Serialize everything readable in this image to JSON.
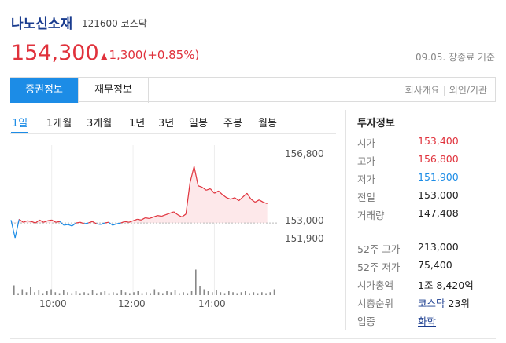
{
  "stock": {
    "name": "나노신소재",
    "code": "121600",
    "market": "코스닥",
    "price": "154,300",
    "change_arrow": "▲",
    "change": "1,300(+0.85%)",
    "as_of": "09.05. 장종료 기준"
  },
  "tabs": {
    "securities": "증권정보",
    "financial": "재무정보",
    "company_overview": "회사개요",
    "links_sep": "|",
    "foreign_institution": "외인/기관"
  },
  "periods": [
    "1일",
    "1개월",
    "3개월",
    "1년",
    "3년",
    "일봉",
    "주봉",
    "월봉"
  ],
  "info": {
    "title": "투자정보",
    "rows": [
      {
        "label": "시가",
        "value": "153,400",
        "color": "#e0323c"
      },
      {
        "label": "고가",
        "value": "156,800",
        "color": "#e0323c"
      },
      {
        "label": "저가",
        "value": "151,900",
        "color": "#1c8ce6"
      },
      {
        "label": "전일",
        "value": "153,000"
      },
      {
        "label": "거래량",
        "value": "147,408"
      }
    ],
    "rows2": [
      {
        "label": "52주 고가",
        "value": "213,000"
      },
      {
        "label": "52주 저가",
        "value": "75,400"
      },
      {
        "label": "시가총액",
        "value": "1조 8,420억"
      },
      {
        "label": "시총순위",
        "value_link": "코스닥",
        "value_suffix": " 23위"
      },
      {
        "label": "업종",
        "value_link": "화학"
      }
    ]
  },
  "chart_data": {
    "type": "line",
    "y_ticks": [
      "156,800",
      "153,000",
      "151,900"
    ],
    "x_ticks": [
      "10:00",
      "12:00",
      "14:00"
    ],
    "prev_close": 153000,
    "ylim": [
      151900,
      156800
    ],
    "colors": {
      "up": "#e0323c",
      "down": "#1c8ce6",
      "fill": "#fde8ea"
    },
    "times": [
      9.0,
      9.1,
      9.2,
      9.3,
      9.4,
      9.5,
      9.6,
      9.7,
      9.8,
      9.9,
      10.0,
      10.1,
      10.2,
      10.3,
      10.4,
      10.5,
      10.6,
      10.7,
      10.8,
      10.9,
      11.0,
      11.1,
      11.2,
      11.3,
      11.4,
      11.5,
      11.6,
      11.7,
      11.8,
      11.9,
      12.0,
      12.1,
      12.2,
      12.3,
      12.4,
      12.5,
      12.6,
      12.7,
      12.8,
      12.9,
      13.0,
      13.1,
      13.2,
      13.3,
      13.4,
      13.5,
      13.6,
      13.7,
      13.8,
      13.9,
      14.0,
      14.1,
      14.2,
      14.3,
      14.4,
      14.5,
      14.6,
      14.7,
      14.8,
      14.9,
      15.0,
      15.1,
      15.2,
      15.3
    ],
    "prices": [
      153200,
      152000,
      153250,
      153050,
      153150,
      153100,
      153000,
      153200,
      153050,
      153150,
      153200,
      153050,
      153100,
      152850,
      152900,
      152800,
      153000,
      153050,
      152950,
      153000,
      153100,
      152950,
      152900,
      153000,
      153050,
      152850,
      152950,
      153000,
      153100,
      153050,
      153150,
      153250,
      153200,
      153350,
      153300,
      153400,
      153500,
      153450,
      153550,
      153650,
      153750,
      153550,
      153400,
      153600,
      155700,
      156800,
      155500,
      155400,
      155200,
      155300,
      155000,
      155150,
      154900,
      154700,
      154600,
      154700,
      154500,
      154750,
      155000,
      154600,
      154400,
      154550,
      154400,
      154300
    ],
    "volume_ticks": [
      10,
      2,
      6,
      3,
      8,
      3,
      5,
      2,
      4,
      6,
      3,
      2,
      5,
      3,
      2,
      4,
      2,
      3,
      2,
      5,
      2,
      3,
      4,
      2,
      3,
      2,
      5,
      3,
      2,
      3,
      4,
      2,
      3,
      2,
      6,
      3,
      2,
      4,
      3,
      5,
      2,
      3,
      2,
      4,
      26,
      9,
      6,
      4,
      3,
      5,
      3,
      2,
      4,
      3,
      2,
      3,
      4,
      2,
      3,
      2,
      3,
      2,
      3,
      6
    ]
  }
}
